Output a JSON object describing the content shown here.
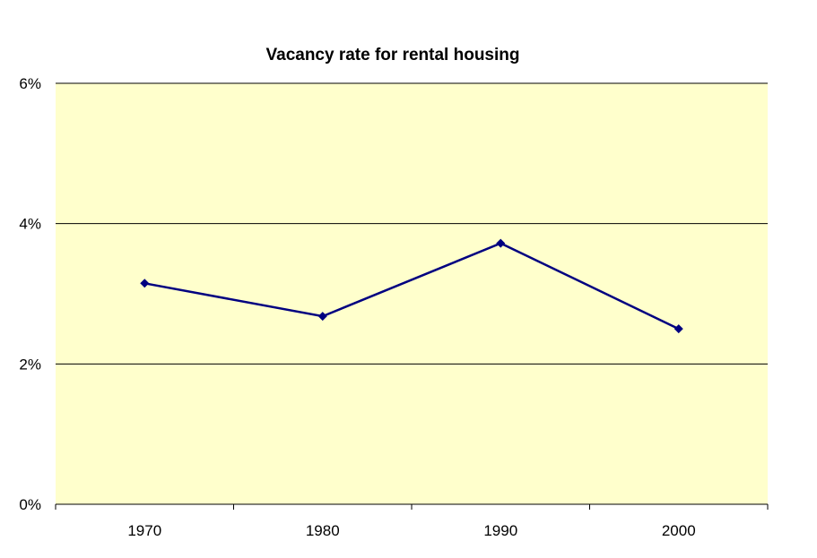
{
  "chart_data": {
    "type": "line",
    "title": "Vacancy rate for rental housing",
    "xlabel": "",
    "ylabel": "",
    "categories": [
      "1970",
      "1980",
      "1990",
      "2000"
    ],
    "series": [
      {
        "values": [
          3.15,
          2.68,
          3.72,
          2.5
        ]
      }
    ],
    "ylim": [
      0,
      6
    ],
    "y_ticks": [
      0,
      2,
      4,
      6
    ],
    "y_tick_labels": [
      "0%",
      "2%",
      "4%",
      "6%"
    ],
    "grid": true,
    "legend": "none",
    "colors": {
      "plot_background": "#ffffcc",
      "series": "#000080",
      "gridline": "#000000"
    }
  }
}
